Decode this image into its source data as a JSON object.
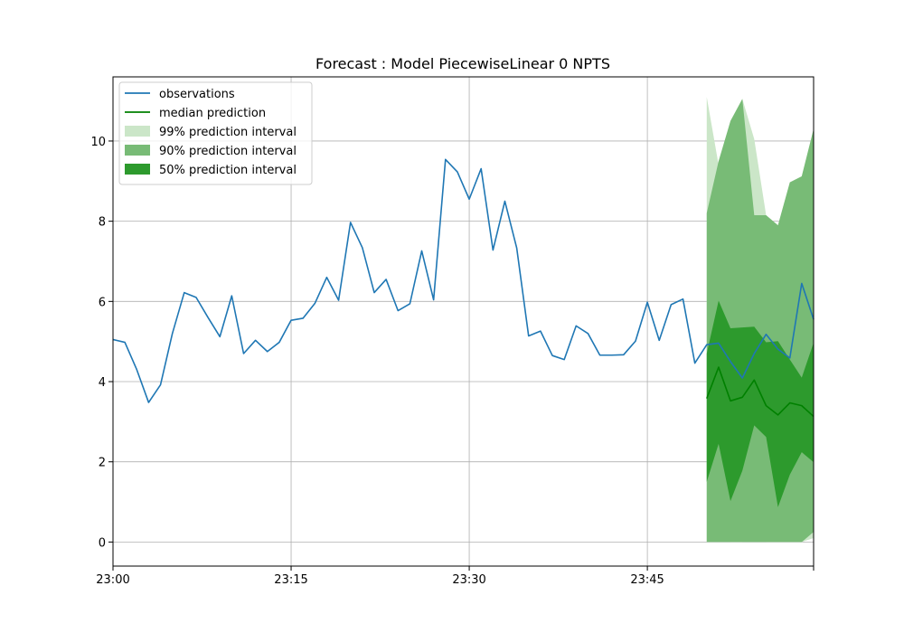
{
  "chart_data": {
    "type": "line",
    "title": "Forecast : Model PiecewiseLinear 0 NPTS",
    "xlabel": "",
    "ylabel": "",
    "xlim": [
      0,
      59
    ],
    "ylim": [
      -0.6,
      11.6
    ],
    "grid": true,
    "legend_position": "top-left",
    "x_ticks": [
      {
        "x": 0,
        "label": "23:00"
      },
      {
        "x": 15,
        "label": "23:15"
      },
      {
        "x": 30,
        "label": "23:30"
      },
      {
        "x": 45,
        "label": "23:45"
      }
    ],
    "y_ticks": [
      0,
      2,
      4,
      6,
      8,
      10
    ],
    "observations": {
      "name": "observations",
      "color": "#1f77b4",
      "x_start": 0,
      "values": [
        5.05,
        4.98,
        4.3,
        3.48,
        3.92,
        5.2,
        6.22,
        6.1,
        5.6,
        5.12,
        6.14,
        4.7,
        5.03,
        4.75,
        4.98,
        5.53,
        5.58,
        5.95,
        6.6,
        6.03,
        7.97,
        7.34,
        6.22,
        6.55,
        5.77,
        5.94,
        7.26,
        6.04,
        9.54,
        9.23,
        8.55,
        9.31,
        7.28,
        8.5,
        7.33,
        5.14,
        5.26,
        4.65,
        4.55,
        5.39,
        5.2,
        4.66,
        4.66,
        4.67,
        5.01,
        5.98,
        5.03,
        5.92,
        6.06,
        4.46,
        4.92,
        4.96,
        4.5,
        4.09,
        4.7,
        5.18,
        4.81,
        4.59,
        6.45,
        5.55
      ]
    },
    "median_prediction": {
      "name": "median prediction",
      "color": "#008000",
      "x_start": 50,
      "values": [
        3.58,
        4.36,
        3.52,
        3.61,
        4.04,
        3.4,
        3.17,
        3.47,
        3.4,
        3.13
      ]
    },
    "intervals": [
      {
        "name": "99% prediction interval",
        "color": "#cbe6c8",
        "x_start": 50,
        "upper": [
          11.1,
          9.4,
          10.5,
          11.05,
          10.05,
          8.15,
          7.9,
          8.97,
          9.12,
          10.3
        ],
        "lower": [
          0.0,
          0.45,
          0.0,
          0.0,
          0.97,
          0.0,
          0.0,
          0.0,
          0.0,
          0.1
        ]
      },
      {
        "name": "90% prediction interval",
        "color": "#78bb76",
        "x_start": 50,
        "upper": [
          8.2,
          9.5,
          10.5,
          11.05,
          8.15,
          8.15,
          7.9,
          8.97,
          9.12,
          10.3
        ],
        "lower": [
          0.0,
          0.0,
          0.0,
          0.0,
          0.0,
          0.0,
          0.0,
          0.0,
          0.0,
          0.25
        ]
      },
      {
        "name": "50% prediction interval",
        "color": "#2d9a2d",
        "x_start": 50,
        "upper": [
          4.7,
          6.02,
          5.33,
          5.35,
          5.37,
          4.98,
          5.01,
          4.55,
          4.1,
          4.97
        ],
        "lower": [
          1.5,
          2.45,
          1.02,
          1.78,
          2.91,
          2.62,
          0.87,
          1.68,
          2.24,
          1.99
        ]
      }
    ]
  }
}
